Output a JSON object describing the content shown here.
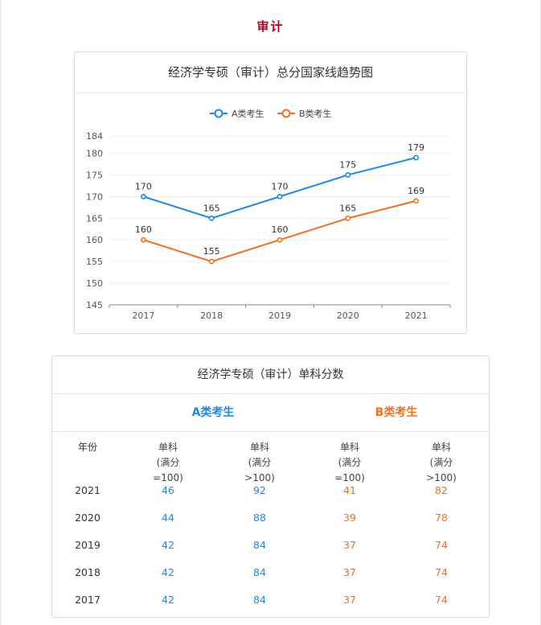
{
  "page": {
    "section_title": "审计"
  },
  "chart_data": {
    "type": "line",
    "title": "经济学专硕（审计）总分国家线趋势图",
    "categories": [
      "2017",
      "2018",
      "2019",
      "2020",
      "2021"
    ],
    "series": [
      {
        "name": "A类考生",
        "color": "#1e88e5",
        "values": [
          170,
          165,
          170,
          175,
          179
        ]
      },
      {
        "name": "B类考生",
        "color": "#f07022",
        "values": [
          160,
          155,
          160,
          165,
          169
        ]
      }
    ],
    "yticks": [
      145,
      150,
      155,
      160,
      165,
      170,
      175,
      180,
      184
    ],
    "ylim": [
      145,
      184
    ],
    "grid": true,
    "legend_position": "top-center"
  },
  "table": {
    "title": "经济学专硕（审计）单科分数",
    "group_a": "A类考生",
    "group_b": "B类考生",
    "headers": [
      "年份",
      "单科\n(满分=100)",
      "单科\n(满分>100)",
      "单科\n(满分=100)",
      "单科\n(满分>100)"
    ],
    "rows": [
      [
        "2021",
        "46",
        "92",
        "41",
        "82"
      ],
      [
        "2020",
        "44",
        "88",
        "39",
        "78"
      ],
      [
        "2019",
        "42",
        "84",
        "37",
        "74"
      ],
      [
        "2018",
        "42",
        "84",
        "37",
        "74"
      ],
      [
        "2017",
        "42",
        "84",
        "37",
        "74"
      ]
    ]
  }
}
